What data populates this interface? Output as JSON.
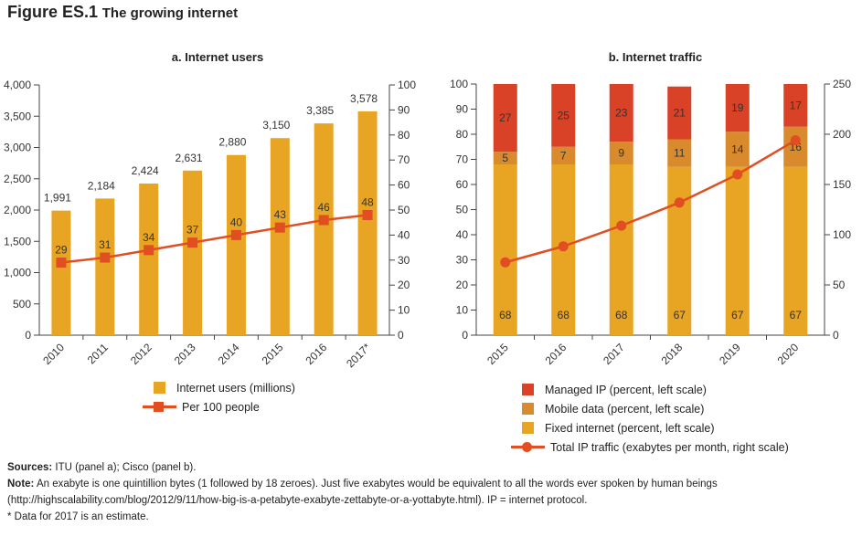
{
  "figure": {
    "label": "Figure ES.1",
    "title": "The growing internet"
  },
  "colors": {
    "bar": "#e8a423",
    "line": "#e04e22",
    "mobile": "#d98a2c",
    "managed": "#d94226",
    "text": "#222222"
  },
  "chart_data": [
    {
      "id": "a",
      "type": "bar",
      "title": "a. Internet users",
      "categories": [
        "2010",
        "2011",
        "2012",
        "2013",
        "2014",
        "2015",
        "2016",
        "2017*"
      ],
      "series": [
        {
          "name": "Internet users (millions)",
          "type": "bar",
          "axis": "left",
          "values": [
            1991,
            2184,
            2424,
            2631,
            2880,
            3150,
            3385,
            3578
          ],
          "labels": [
            "1,991",
            "2,184",
            "2,424",
            "2,631",
            "2,880",
            "3,150",
            "3,385",
            "3,578"
          ]
        },
        {
          "name": "Per 100 people",
          "type": "line",
          "axis": "right",
          "marker": "square",
          "values": [
            29,
            31,
            34,
            37,
            40,
            43,
            46,
            48
          ],
          "labels": [
            "29",
            "31",
            "34",
            "37",
            "40",
            "43",
            "46",
            "48"
          ]
        }
      ],
      "y_left": {
        "range": [
          0,
          4000
        ],
        "ticks": [
          0,
          500,
          1000,
          1500,
          2000,
          2500,
          3000,
          3500,
          4000
        ],
        "tick_labels": [
          "0",
          "500",
          "1,000",
          "1,500",
          "2,000",
          "2,500",
          "3,000",
          "3,500",
          "4,000"
        ]
      },
      "y_right": {
        "range": [
          0,
          100
        ],
        "ticks": [
          0,
          10,
          20,
          30,
          40,
          50,
          60,
          70,
          80,
          90,
          100
        ],
        "tick_labels": [
          "0",
          "10",
          "20",
          "30",
          "40",
          "50",
          "60",
          "70",
          "80",
          "90",
          "100"
        ]
      },
      "legend_placement": "bottom",
      "grid": false
    },
    {
      "id": "b",
      "type": "bar",
      "stacked": true,
      "title": "b. Internet traffic",
      "categories": [
        "2015",
        "2016",
        "2017",
        "2018",
        "2019",
        "2020"
      ],
      "series": [
        {
          "name": "Fixed internet (percent, left scale)",
          "type": "bar",
          "axis": "left",
          "values": [
            68,
            68,
            68,
            67,
            67,
            67
          ],
          "labels": [
            "68",
            "68",
            "68",
            "67",
            "67",
            "67"
          ]
        },
        {
          "name": "Mobile data (percent, left scale)",
          "type": "bar",
          "axis": "left",
          "values": [
            5,
            7,
            9,
            11,
            14,
            16
          ],
          "labels": [
            "5",
            "7",
            "9",
            "11",
            "14",
            "16"
          ]
        },
        {
          "name": "Managed IP (percent, left scale)",
          "type": "bar",
          "axis": "left",
          "values": [
            27,
            25,
            23,
            21,
            19,
            17
          ],
          "labels": [
            "27",
            "25",
            "23",
            "21",
            "19",
            "17"
          ]
        },
        {
          "name": "Total IP traffic (exabytes per month, right scale)",
          "type": "line",
          "axis": "right",
          "marker": "circle",
          "values": [
            72.5,
            88.4,
            109,
            132,
            160,
            194
          ]
        }
      ],
      "legend_order": [
        2,
        1,
        0,
        3
      ],
      "y_left": {
        "range": [
          0,
          100
        ],
        "ticks": [
          0,
          10,
          20,
          30,
          40,
          50,
          60,
          70,
          80,
          90,
          100
        ],
        "tick_labels": [
          "0",
          "10",
          "20",
          "30",
          "40",
          "50",
          "60",
          "70",
          "80",
          "90",
          "100"
        ]
      },
      "y_right": {
        "range": [
          0,
          250
        ],
        "ticks": [
          0,
          50,
          100,
          150,
          200,
          250
        ],
        "tick_labels": [
          "0",
          "50",
          "100",
          "150",
          "200",
          "250"
        ]
      },
      "legend_placement": "bottom",
      "grid": false
    }
  ],
  "notes": {
    "sources_label": "Sources:",
    "sources_text": "ITU (panel a); Cisco (panel b).",
    "note_label": "Note:",
    "note_text_1": "An exabyte is one quintillion bytes (1 followed by 18 zeroes). Just five exabytes would be equivalent to all the words ever spoken by human beings",
    "note_text_2": "(http://highscalability.com/blog/2012/9/11/how-big-is-a-petabyte-exabyte-zettabyte-or-a-yottabyte.html). IP = internet protocol.",
    "footnote": "* Data for 2017 is an estimate."
  }
}
